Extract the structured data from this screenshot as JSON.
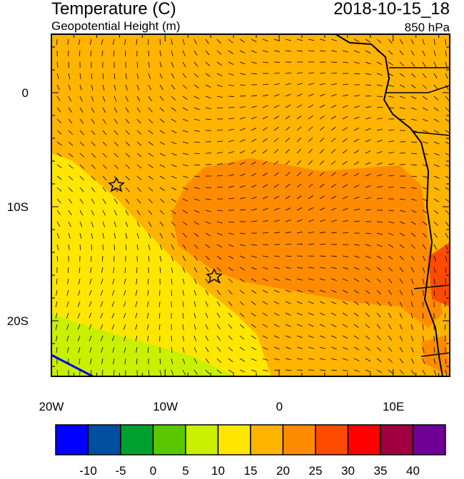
{
  "header": {
    "title": "Temperature (C)",
    "subtitle": "Geopotential Height (m)",
    "date": "2018-10-15_18",
    "level": "850 hPa"
  },
  "axes": {
    "lon_labels": [
      "20W",
      "10W",
      "0",
      "10E"
    ],
    "lat_labels": [
      "0",
      "10S",
      "20S"
    ]
  },
  "colorbar": {
    "colors": [
      "#0000ff",
      "#004f9e",
      "#00a030",
      "#5ac800",
      "#c8f000",
      "#ffe600",
      "#ffb400",
      "#ff8c00",
      "#ff4b00",
      "#ff0000",
      "#a00040",
      "#6e0096"
    ],
    "labels": [
      -10,
      -5,
      0,
      5,
      10,
      15,
      20,
      25,
      30,
      35,
      40
    ]
  }
}
